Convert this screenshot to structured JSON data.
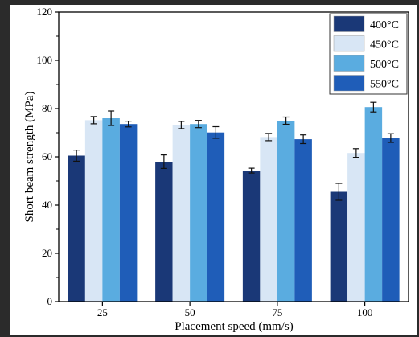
{
  "chart_data": {
    "type": "bar",
    "title": "",
    "xlabel": "Placement speed (mm/s)",
    "ylabel": "Short beam strength (MPa)",
    "categories": [
      "25",
      "50",
      "75",
      "100"
    ],
    "ylim": [
      0,
      120
    ],
    "yticks": [
      "0",
      "20",
      "40",
      "60",
      "80",
      "100",
      "120"
    ],
    "grid": false,
    "legend_position": "top-right",
    "series": [
      {
        "name": "400°C",
        "color": "#1a3877",
        "values": [
          60.5,
          58.0,
          54.3,
          45.5
        ],
        "errors": [
          2.3,
          2.8,
          1.0,
          3.5
        ]
      },
      {
        "name": "450°C",
        "color": "#d8e6f5",
        "values": [
          75.2,
          73.2,
          68.2,
          61.6
        ],
        "errors": [
          1.5,
          1.5,
          1.5,
          1.8
        ]
      },
      {
        "name": "500°C",
        "color": "#5aace0",
        "values": [
          76.0,
          73.6,
          75.0,
          80.6
        ],
        "errors": [
          3.0,
          1.5,
          1.5,
          2.0
        ]
      },
      {
        "name": "550°C",
        "color": "#1f5db8",
        "values": [
          73.6,
          70.1,
          67.3,
          67.8
        ],
        "errors": [
          1.2,
          2.4,
          1.8,
          1.8
        ]
      }
    ]
  }
}
